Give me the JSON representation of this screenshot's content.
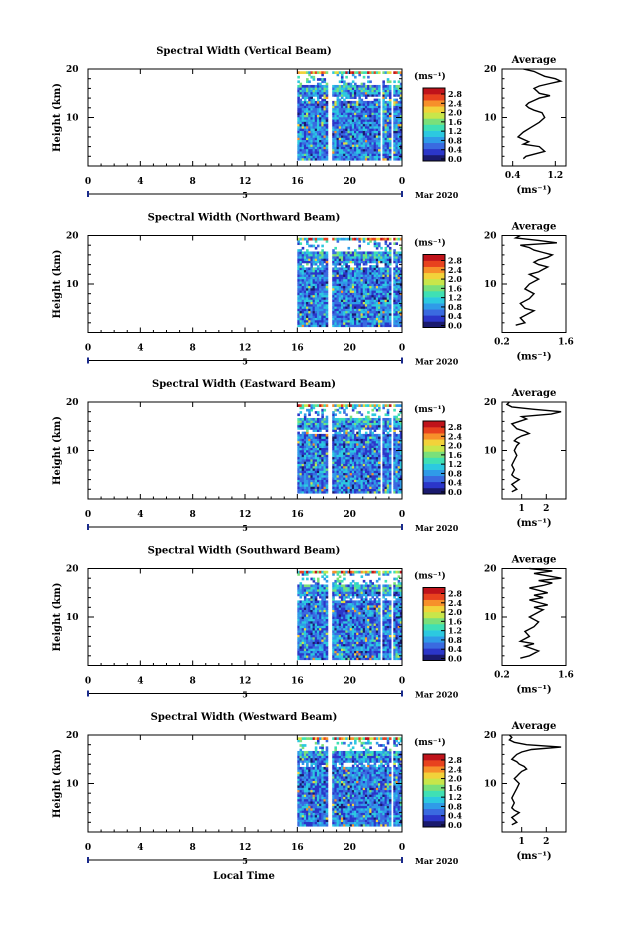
{
  "figure": {
    "xlabel": "Local Time",
    "ylabel": "Height (km)",
    "date_label": "Mar 2020",
    "day_label": "5",
    "colorbar_unit": "(ms⁻¹)",
    "colorbar_ticks": [
      "2.8",
      "2.4",
      "2.0",
      "1.6",
      "1.2",
      "0.8",
      "0.4",
      "0.0"
    ],
    "average_title": "Average",
    "average_xlabel": "(ms⁻¹)",
    "colors": {
      "colormap": [
        "#1a1a6e",
        "#2b36c9",
        "#3a6ae0",
        "#2f9be8",
        "#2cc9e0",
        "#3fe0b4",
        "#7ae07a",
        "#c8e64a",
        "#f2d23a",
        "#f7902a",
        "#e8421e",
        "#c0131a"
      ],
      "missing": "#ffffff"
    }
  },
  "chart_data": [
    {
      "type": "heatmap",
      "title": "Spectral Width (Vertical Beam)",
      "x_ticks": [
        "0",
        "4",
        "8",
        "12",
        "16",
        "20",
        "0"
      ],
      "xlim": [
        0,
        24
      ],
      "y_ticks": [
        "20",
        "10"
      ],
      "ylim": [
        0,
        20
      ],
      "data_x_range": [
        16,
        24
      ],
      "gaps": [
        [
          18.3,
          18.7
        ],
        [
          22.3,
          22.5
        ],
        [
          23.2,
          23.4
        ]
      ],
      "z_range": [
        0,
        3.0
      ],
      "average": {
        "x_ticks": [
          "0.4",
          "1.2"
        ],
        "xlim": [
          0.2,
          1.4
        ],
        "profile_x": [
          0.6,
          0.65,
          1.0,
          0.9,
          0.6,
          0.7,
          0.5,
          0.6,
          0.75,
          0.9,
          1.0,
          0.95,
          0.8,
          0.7,
          0.65,
          0.7,
          0.8,
          0.9,
          1.1,
          0.9,
          0.85,
          0.8,
          0.9,
          1.1,
          1.3,
          1.2,
          1.0,
          0.9,
          0.8,
          0.6
        ],
        "profile_y": [
          1.5,
          2,
          3,
          4,
          4.5,
          5,
          6,
          7,
          8,
          9,
          10,
          11,
          11.5,
          12,
          12.5,
          13,
          13.5,
          14,
          14.5,
          15,
          15.5,
          16,
          16.5,
          17,
          17.5,
          18,
          18.5,
          19,
          19.5,
          20
        ]
      }
    },
    {
      "type": "heatmap",
      "title": "Spectral Width (Northward Beam)",
      "x_ticks": [
        "0",
        "4",
        "8",
        "12",
        "16",
        "20",
        "0"
      ],
      "xlim": [
        0,
        24
      ],
      "y_ticks": [
        "20",
        "10"
      ],
      "ylim": [
        0,
        20
      ],
      "data_x_range": [
        16,
        24
      ],
      "gaps": [
        [
          18.3,
          18.7
        ],
        [
          23.2,
          23.4
        ]
      ],
      "z_range": [
        0,
        3.0
      ],
      "average": {
        "x_ticks": [
          "0.2",
          "1.6"
        ],
        "xlim": [
          0.2,
          1.6
        ],
        "profile_x": [
          0.5,
          0.7,
          0.6,
          0.8,
          0.9,
          0.7,
          0.6,
          0.8,
          0.9,
          0.7,
          0.8,
          1.0,
          0.9,
          0.8,
          1.0,
          1.1,
          1.2,
          1.0,
          0.9,
          1.0,
          1.2,
          1.3,
          1.1,
          0.9,
          0.8,
          0.6,
          1.4,
          1.0,
          0.5,
          0.6
        ],
        "profile_y": [
          1.5,
          2,
          3,
          4,
          4.5,
          5,
          6,
          7,
          8,
          9,
          10,
          11,
          11.5,
          12,
          12.5,
          13,
          13.5,
          14,
          14.5,
          15,
          15.5,
          16,
          16.5,
          17,
          17.5,
          18,
          18.5,
          19,
          19.5,
          20
        ]
      }
    },
    {
      "type": "heatmap",
      "title": "Spectral Width (Eastward Beam)",
      "x_ticks": [
        "0",
        "4",
        "8",
        "12",
        "16",
        "20",
        "0"
      ],
      "xlim": [
        0,
        24
      ],
      "y_ticks": [
        "20",
        "10"
      ],
      "ylim": [
        0,
        20
      ],
      "data_x_range": [
        16,
        24
      ],
      "gaps": [
        [
          18.3,
          18.7
        ],
        [
          22.3,
          22.5
        ],
        [
          23.2,
          23.4
        ]
      ],
      "z_range": [
        0,
        3.0
      ],
      "average": {
        "x_ticks": [
          "1",
          "2"
        ],
        "xlim": [
          0.2,
          2.8
        ],
        "profile_x": [
          0.6,
          0.8,
          0.6,
          0.9,
          0.7,
          0.6,
          0.7,
          0.6,
          0.7,
          0.8,
          0.7,
          0.8,
          0.9,
          0.7,
          0.8,
          1.0,
          1.3,
          1.1,
          0.8,
          0.7,
          0.6,
          0.9,
          1.2,
          1.0,
          2.2,
          2.6,
          1.5,
          0.6,
          0.4,
          0.5
        ],
        "profile_y": [
          1.5,
          2,
          3,
          4,
          4.5,
          5,
          6,
          7,
          8,
          9,
          10,
          11,
          11.5,
          12,
          12.5,
          13,
          13.5,
          14,
          14.5,
          15,
          15.5,
          16,
          16.5,
          17,
          17.5,
          18,
          18.5,
          19,
          19.5,
          20
        ]
      }
    },
    {
      "type": "heatmap",
      "title": "Spectral Width (Southward Beam)",
      "x_ticks": [
        "0",
        "4",
        "8",
        "12",
        "16",
        "20",
        "0"
      ],
      "xlim": [
        0,
        24
      ],
      "y_ticks": [
        "20",
        "10"
      ],
      "ylim": [
        0,
        20
      ],
      "data_x_range": [
        16,
        24
      ],
      "gaps": [
        [
          18.3,
          18.7
        ],
        [
          22.3,
          22.5
        ],
        [
          23.2,
          23.4
        ]
      ],
      "z_range": [
        0,
        3.0
      ],
      "average": {
        "x_ticks": [
          "0.2",
          "1.6"
        ],
        "xlim": [
          0.2,
          1.6
        ],
        "profile_x": [
          0.6,
          0.8,
          1.0,
          0.7,
          0.9,
          0.6,
          0.8,
          0.7,
          0.9,
          1.0,
          0.8,
          1.0,
          1.1,
          0.9,
          1.2,
          1.0,
          0.8,
          1.1,
          0.9,
          1.2,
          1.0,
          0.8,
          1.1,
          1.3,
          1.0,
          1.5,
          1.2,
          0.9,
          1.3,
          0.8
        ],
        "profile_y": [
          1.5,
          2,
          3,
          4,
          4.5,
          5,
          6,
          7,
          8,
          9,
          10,
          11,
          11.5,
          12,
          12.5,
          13,
          13.5,
          14,
          14.5,
          15,
          15.5,
          16,
          16.5,
          17,
          17.5,
          18,
          18.5,
          19,
          19.5,
          20
        ]
      }
    },
    {
      "type": "heatmap",
      "title": "Spectral Width (Westward Beam)",
      "x_ticks": [
        "0",
        "4",
        "8",
        "12",
        "16",
        "20",
        "0"
      ],
      "xlim": [
        0,
        24
      ],
      "y_ticks": [
        "20",
        "10"
      ],
      "ylim": [
        0,
        20
      ],
      "data_x_range": [
        16,
        24
      ],
      "gaps": [
        [
          18.3,
          18.7
        ],
        [
          23.2,
          23.4
        ]
      ],
      "z_range": [
        0,
        3.0
      ],
      "average": {
        "x_ticks": [
          "1",
          "2"
        ],
        "xlim": [
          0.2,
          2.8
        ],
        "profile_x": [
          0.6,
          0.8,
          0.6,
          0.9,
          0.7,
          0.6,
          0.7,
          0.6,
          0.7,
          0.8,
          0.9,
          0.7,
          0.8,
          0.9,
          1.0,
          1.2,
          1.1,
          0.9,
          0.8,
          0.6,
          0.7,
          0.8,
          1.0,
          1.4,
          2.6,
          1.2,
          0.7,
          0.5,
          0.6,
          0.5
        ],
        "profile_y": [
          1.5,
          2,
          3,
          4,
          4.5,
          5,
          6,
          7,
          8,
          9,
          10,
          11,
          11.5,
          12,
          12.5,
          13,
          13.5,
          14,
          14.5,
          15,
          15.5,
          16,
          16.5,
          17,
          17.5,
          18,
          18.5,
          19,
          19.5,
          20
        ]
      }
    }
  ]
}
